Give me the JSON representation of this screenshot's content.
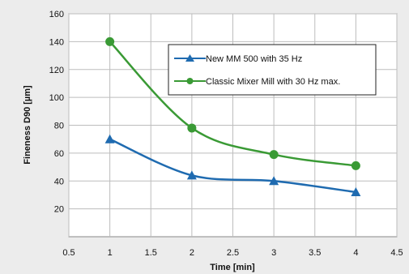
{
  "chart_data": {
    "type": "line",
    "title": "",
    "xlabel": "Time [min]",
    "ylabel": "Fineness D90 [µm]",
    "xlim": [
      0.5,
      4.5
    ],
    "ylim": [
      0,
      160
    ],
    "xticks": [
      "0.5",
      "1",
      "1.5",
      "2",
      "2.5",
      "3",
      "3.5",
      "4",
      "4.5"
    ],
    "yticks": [
      "20",
      "40",
      "60",
      "80",
      "100",
      "120",
      "140",
      "160"
    ],
    "grid": true,
    "legend_position": "top-right",
    "series": [
      {
        "name": "New MM 500 with 35 Hz",
        "color": "#1f6bb0",
        "marker": "triangle",
        "x": [
          1,
          2,
          3,
          4
        ],
        "y": [
          70,
          44,
          40,
          32
        ]
      },
      {
        "name": "Classic Mixer Mill with 30 Hz max.",
        "color": "#3a9a35",
        "marker": "circle",
        "x": [
          1,
          2,
          3,
          4
        ],
        "y": [
          140,
          78,
          59,
          51
        ]
      }
    ]
  }
}
